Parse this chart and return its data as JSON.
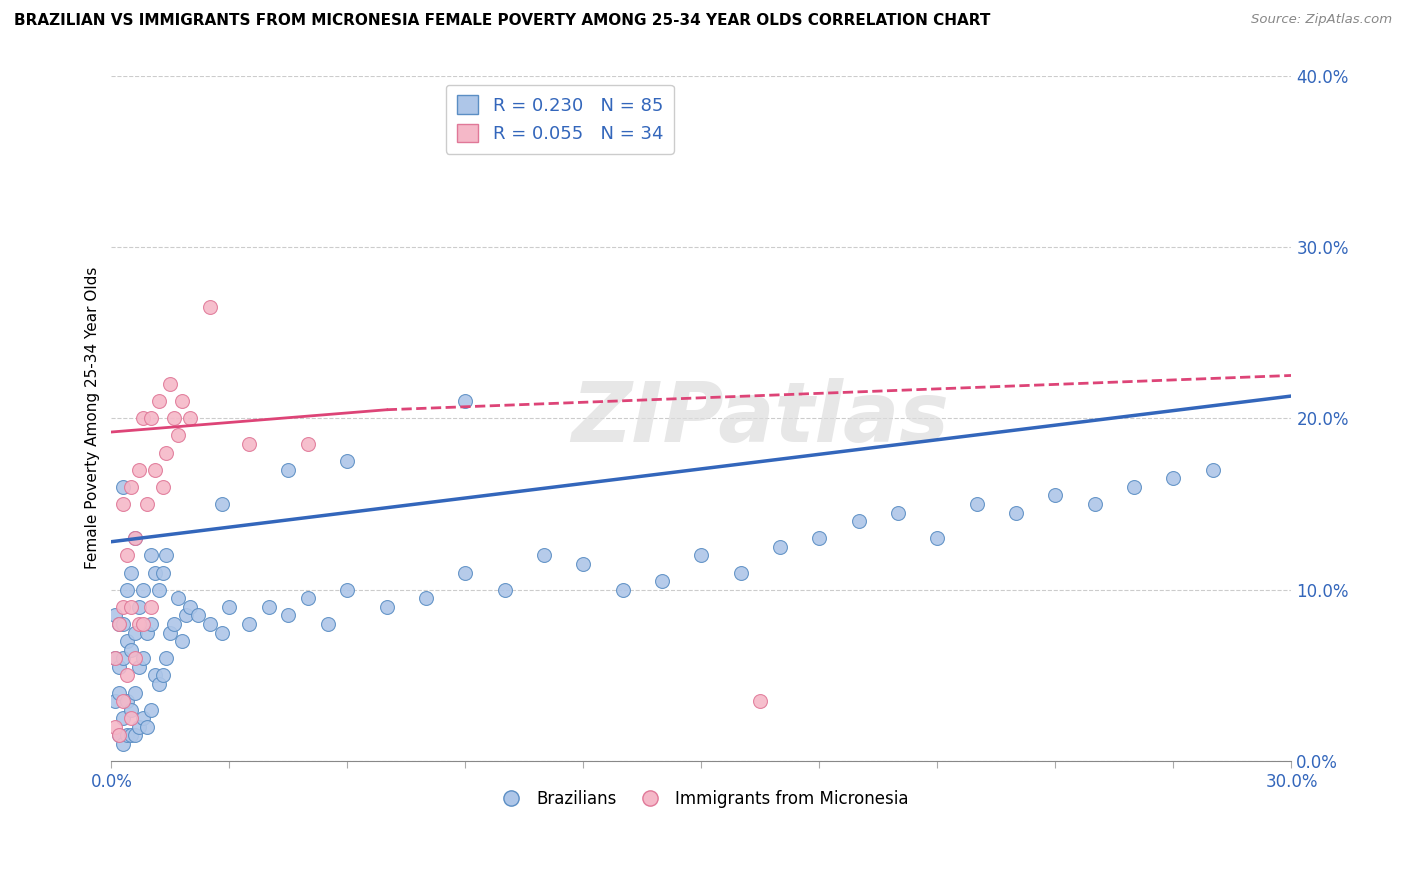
{
  "title": "BRAZILIAN VS IMMIGRANTS FROM MICRONESIA FEMALE POVERTY AMONG 25-34 YEAR OLDS CORRELATION CHART",
  "source": "Source: ZipAtlas.com",
  "ylabel_label": "Female Poverty Among 25-34 Year Olds",
  "legend_blue_r": "R = 0.230",
  "legend_blue_n": "N = 85",
  "legend_pink_r": "R = 0.055",
  "legend_pink_n": "N = 34",
  "blue_color": "#aec6e8",
  "blue_edge": "#5b8ec4",
  "pink_color": "#f5b8c8",
  "pink_edge": "#e07898",
  "blue_line_color": "#3366bb",
  "pink_line_color": "#dd4477",
  "watermark": "ZIPatlas",
  "xlim": [
    0.0,
    0.3
  ],
  "ylim": [
    0.0,
    0.4
  ],
  "blue_x": [
    0.001,
    0.001,
    0.001,
    0.002,
    0.002,
    0.002,
    0.002,
    0.003,
    0.003,
    0.003,
    0.003,
    0.003,
    0.004,
    0.004,
    0.004,
    0.004,
    0.005,
    0.005,
    0.005,
    0.005,
    0.006,
    0.006,
    0.006,
    0.006,
    0.007,
    0.007,
    0.007,
    0.008,
    0.008,
    0.008,
    0.009,
    0.009,
    0.01,
    0.01,
    0.01,
    0.011,
    0.011,
    0.012,
    0.012,
    0.013,
    0.013,
    0.014,
    0.014,
    0.015,
    0.016,
    0.017,
    0.018,
    0.019,
    0.02,
    0.022,
    0.025,
    0.028,
    0.03,
    0.035,
    0.04,
    0.045,
    0.05,
    0.055,
    0.06,
    0.07,
    0.08,
    0.09,
    0.1,
    0.11,
    0.12,
    0.13,
    0.14,
    0.15,
    0.16,
    0.17,
    0.18,
    0.19,
    0.2,
    0.21,
    0.22,
    0.23,
    0.24,
    0.25,
    0.26,
    0.27,
    0.28,
    0.028,
    0.045,
    0.06,
    0.09
  ],
  "blue_y": [
    0.035,
    0.06,
    0.085,
    0.015,
    0.04,
    0.055,
    0.08,
    0.01,
    0.025,
    0.06,
    0.08,
    0.16,
    0.015,
    0.035,
    0.07,
    0.1,
    0.015,
    0.03,
    0.065,
    0.11,
    0.015,
    0.04,
    0.075,
    0.13,
    0.02,
    0.055,
    0.09,
    0.025,
    0.06,
    0.1,
    0.02,
    0.075,
    0.03,
    0.08,
    0.12,
    0.05,
    0.11,
    0.045,
    0.1,
    0.05,
    0.11,
    0.06,
    0.12,
    0.075,
    0.08,
    0.095,
    0.07,
    0.085,
    0.09,
    0.085,
    0.08,
    0.075,
    0.09,
    0.08,
    0.09,
    0.085,
    0.095,
    0.08,
    0.1,
    0.09,
    0.095,
    0.11,
    0.1,
    0.12,
    0.115,
    0.1,
    0.105,
    0.12,
    0.11,
    0.125,
    0.13,
    0.14,
    0.145,
    0.13,
    0.15,
    0.145,
    0.155,
    0.15,
    0.16,
    0.165,
    0.17,
    0.15,
    0.17,
    0.175,
    0.21
  ],
  "pink_x": [
    0.001,
    0.001,
    0.002,
    0.002,
    0.003,
    0.003,
    0.003,
    0.004,
    0.004,
    0.005,
    0.005,
    0.005,
    0.006,
    0.006,
    0.007,
    0.007,
    0.008,
    0.008,
    0.009,
    0.01,
    0.01,
    0.011,
    0.012,
    0.013,
    0.014,
    0.015,
    0.016,
    0.017,
    0.018,
    0.02,
    0.025,
    0.035,
    0.05,
    0.165
  ],
  "pink_y": [
    0.02,
    0.06,
    0.015,
    0.08,
    0.035,
    0.09,
    0.15,
    0.05,
    0.12,
    0.025,
    0.09,
    0.16,
    0.06,
    0.13,
    0.08,
    0.17,
    0.08,
    0.2,
    0.15,
    0.09,
    0.2,
    0.17,
    0.21,
    0.16,
    0.18,
    0.22,
    0.2,
    0.19,
    0.21,
    0.2,
    0.265,
    0.185,
    0.185,
    0.035
  ],
  "blue_trend": [
    0.0,
    0.3,
    0.128,
    0.213
  ],
  "pink_solid_trend": [
    0.0,
    0.07,
    0.192,
    0.205
  ],
  "pink_dashed_trend": [
    0.07,
    0.3,
    0.205,
    0.225
  ],
  "xticks": [
    0.0,
    0.03,
    0.06,
    0.09,
    0.12,
    0.15,
    0.18,
    0.21,
    0.24,
    0.27,
    0.3
  ],
  "yticks": [
    0.0,
    0.1,
    0.2,
    0.3,
    0.4
  ]
}
